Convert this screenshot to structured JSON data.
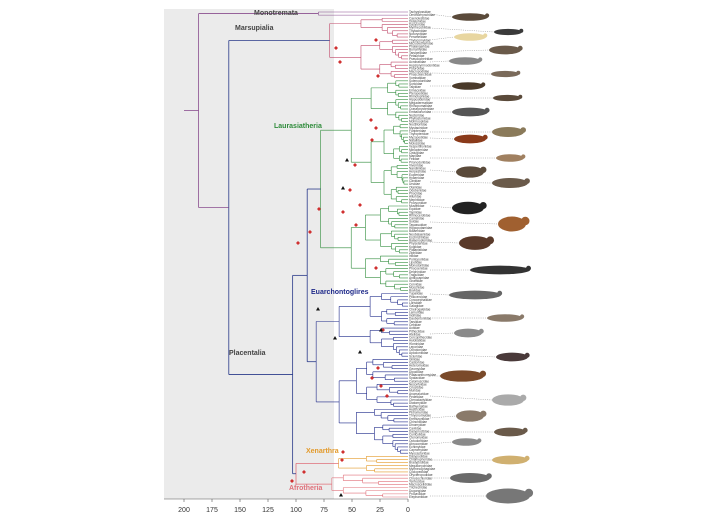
{
  "clades": {
    "monotremata": "Monotremata",
    "marsupialia": "Marsupialia",
    "laurasiatheria": "Laurasiatheria",
    "euarchontoglires": "Euarchontoglires",
    "placentalia": "Placentalia",
    "xenarthra": "Xenarthra",
    "afrotheria": "Afrotheria"
  },
  "colors": {
    "monotremata": "#8a4e8f",
    "marsupialia": "#c04a6a",
    "laurasiatheria": "#2e8b3a",
    "euarchontoglires": "#1f2a8a",
    "xenarthra": "#e39a2b",
    "afrotheria": "#e0707a",
    "stem": "#2a3a8a",
    "shade": "#ebebeb"
  },
  "axis": {
    "ticks": [
      "200",
      "175",
      "150",
      "125",
      "100",
      "75",
      "50",
      "25",
      "0"
    ]
  },
  "tips": {
    "monotremata": [
      "Tachyglossidae",
      "Ornithorhynchidae"
    ],
    "marsupialia": [
      "Caenolestidae",
      "Didelphidae",
      "Dasyuridae",
      "Myrmecobiidae",
      "Thylacinidae",
      "Notoryctidae",
      "Peramelidae",
      "Thylacomyidae",
      "Microbiotheriidae",
      "Phalangeridae",
      "Burramyidae",
      "Tarsipedidae",
      "Petauridae",
      "Pseudocheiridae",
      "Acrobatidae",
      "Hypsiprymnodontidae",
      "Potoroidae",
      "Macropodidae",
      "Phascolarctidae",
      "Vombatidae"
    ],
    "laurasiatheria": [
      "Solenodontidae",
      "Soricidae",
      "Talpidae",
      "Erinaceidae",
      "Pteropodidae",
      "Rhinolophidae",
      "Hipposideridae",
      "Megadermatidae",
      "Rhinopomatidae",
      "Craseonycteridae",
      "Emballonuridae",
      "Nycteridae",
      "Phyllostomidae",
      "Mormoopidae",
      "Noctilionidae",
      "Mystacinidae",
      "Furipteridae",
      "Thyropteridae",
      "Myzopodidae",
      "Natalidae",
      "Molossidae",
      "Vespertilionidae",
      "Miniopteridae",
      "Cistugidae",
      "Manidae",
      "Felidae",
      "Prionodontidae",
      "Viverridae",
      "Nandiniidae",
      "Herpestidae",
      "Eupleridae",
      "Hyaenidae",
      "Canidae",
      "Ursidae",
      "Otariidae",
      "Odobenidae",
      "Phocidae",
      "Ailuridae",
      "Mephitidae",
      "Procyonidae",
      "Mustelidae",
      "Equidae",
      "Tapiridae",
      "Rhinocerotidae",
      "Camelidae",
      "Suidae",
      "Tayassuidae",
      "Hippopotamidae",
      "Balaenidae",
      "Neobalaenidae",
      "Eschrichtiidae",
      "Balaenopteridae",
      "Physeteridae",
      "Kogiidae",
      "Platanistidae",
      "Ziphiidae",
      "Iniidae",
      "Pontoporiidae",
      "Lipotidae",
      "Monodontidae",
      "Phocoenidae",
      "Delphinidae",
      "Tragulidae",
      "Antilocapridae",
      "Giraffidae",
      "Cervidae",
      "Moschidae",
      "Bovidae"
    ],
    "euarchontoglires": [
      "Tupaiidae",
      "Ptilocercidae",
      "Cynocephalidae",
      "Lorisidae",
      "Galagidae",
      "Cheirogaleidae",
      "Lemuridae",
      "Indriidae",
      "Daubentoniidae",
      "Tarsiidae",
      "Cebidae",
      "Aotidae",
      "Pitheciidae",
      "Atelidae",
      "Cercopithecidae",
      "Hylobatidae",
      "Hominidae",
      "Leporidae",
      "Ochotonidae",
      "Aplodontiidae",
      "Sciuridae",
      "Gliridae",
      "Castoridae",
      "Heteromyidae",
      "Geomyidae",
      "Dipodidae",
      "Platacanthomyidae",
      "Spalacidae",
      "Calomyscidae",
      "Nesomyidae",
      "Cricetidae",
      "Muridae",
      "Anomaluridae",
      "Pedetidae",
      "Ctenodactylidae",
      "Diatomyidae",
      "Bathyergidae",
      "Hystricidae",
      "Petromuridae",
      "Thryonomyidae",
      "Erethizontidae",
      "Chinchillidae",
      "Dinomyidae",
      "Caviidae",
      "Dasyproctidae",
      "Cuniculidae",
      "Ctenomyidae",
      "Octodontidae",
      "Abrocomidae",
      "Echimyidae",
      "Capromyidae",
      "Myocastoridae"
    ],
    "xenarthra": [
      "Dasypodidae",
      "Chlamyphoridae",
      "Bradypodidae",
      "Megalonychidae",
      "Myrmecophagidae",
      "Cyclopedidae"
    ],
    "afrotheria": [
      "Orycteropodidae",
      "Chrysochloridae",
      "Tenrecidae",
      "Macroscelididae",
      "Trichechidae",
      "Dugongidae",
      "Procaviidae",
      "Elephantidae"
    ]
  }
}
